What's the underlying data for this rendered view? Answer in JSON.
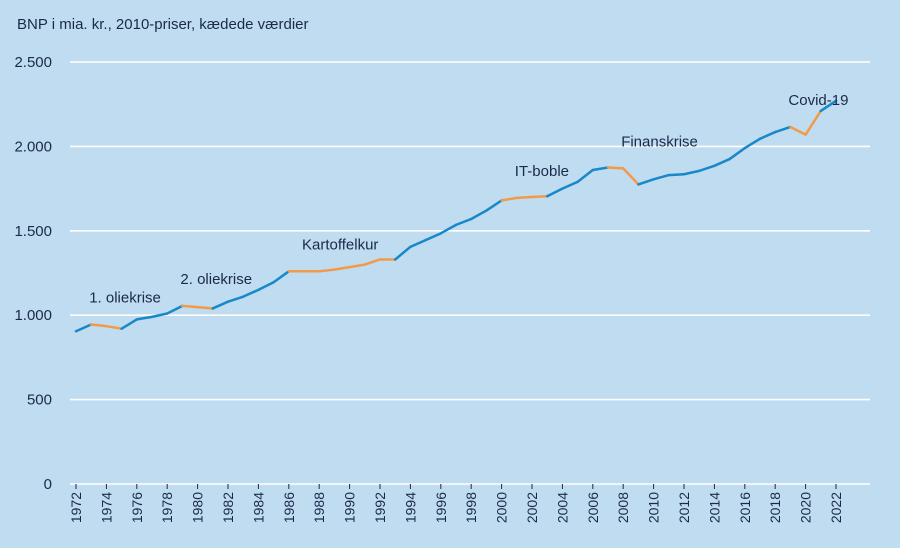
{
  "chart_data": {
    "type": "line",
    "subtitle": "BNP i mia. kr., 2010-priser, kædede værdier",
    "ylim": [
      0,
      2500
    ],
    "yticks": [
      0,
      500,
      1000,
      1500,
      2000,
      2500
    ],
    "ytick_labels": [
      "0",
      "500",
      "1.000",
      "1.500",
      "2.000",
      "2.500"
    ],
    "xlim": [
      1972,
      2023
    ],
    "xticks": [
      1972,
      1974,
      1976,
      1978,
      1980,
      1982,
      1984,
      1986,
      1988,
      1990,
      1992,
      1994,
      1996,
      1998,
      2000,
      2002,
      2004,
      2006,
      2008,
      2010,
      2012,
      2014,
      2016,
      2018,
      2020,
      2022
    ],
    "grid": true,
    "x": [
      1972,
      1973,
      1974,
      1975,
      1976,
      1977,
      1978,
      1979,
      1980,
      1981,
      1982,
      1983,
      1984,
      1985,
      1986,
      1987,
      1988,
      1989,
      1990,
      1991,
      1992,
      1993,
      1994,
      1995,
      1996,
      1997,
      1998,
      1999,
      2000,
      2001,
      2002,
      2003,
      2004,
      2005,
      2006,
      2007,
      2008,
      2009,
      2010,
      2011,
      2012,
      2013,
      2014,
      2015,
      2016,
      2017,
      2018,
      2019,
      2020,
      2021,
      2022
    ],
    "values": [
      905,
      945,
      935,
      920,
      975,
      990,
      1010,
      1055,
      1048,
      1040,
      1080,
      1110,
      1150,
      1195,
      1260,
      1260,
      1260,
      1270,
      1285,
      1300,
      1330,
      1330,
      1405,
      1445,
      1485,
      1535,
      1570,
      1620,
      1680,
      1695,
      1700,
      1705,
      1750,
      1790,
      1860,
      1875,
      1870,
      1775,
      1805,
      1830,
      1835,
      1855,
      1885,
      1925,
      1990,
      2045,
      2085,
      2115,
      2070,
      2210,
      2270
    ],
    "series_colors": {
      "growth": "#1888c8",
      "downturn": "#f39a4a"
    },
    "downturn_periods": [
      [
        1973,
        1975
      ],
      [
        1979,
        1981
      ],
      [
        1986,
        1993
      ],
      [
        2000,
        2003
      ],
      [
        2007,
        2009
      ],
      [
        2019,
        2021
      ]
    ],
    "annotations": [
      {
        "text": "1. oliekrise",
        "year": 1973
      },
      {
        "text": "2. oliekrise",
        "year": 1979
      },
      {
        "text": "Kartoffelkur",
        "year": 1987
      },
      {
        "text": "IT-boble",
        "year": 2001
      },
      {
        "text": "Finanskrise",
        "year": 2008
      },
      {
        "text": "Covid-19",
        "year": 2019
      }
    ]
  }
}
